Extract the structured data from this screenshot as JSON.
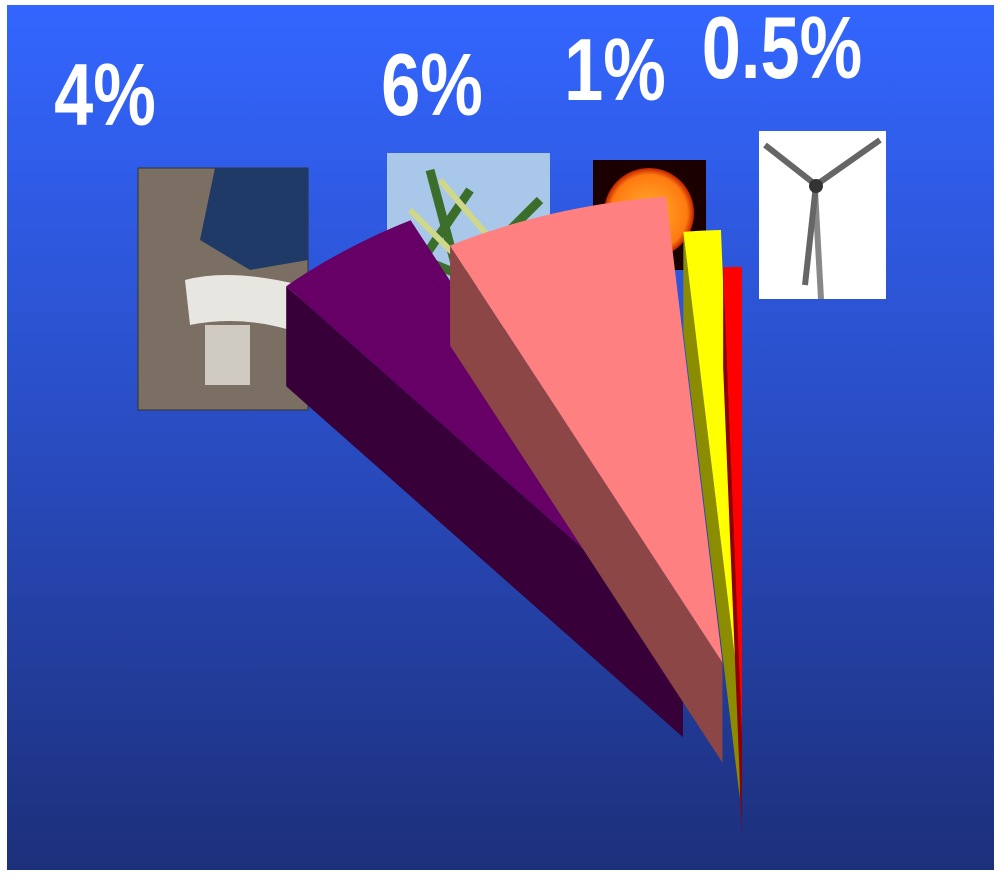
{
  "chart_data": {
    "type": "pie",
    "values": [
      4,
      6,
      1,
      0.5
    ],
    "value_labels": [
      "4%",
      "6%",
      "1%",
      "0.5%"
    ],
    "colors": [
      "#660066",
      "#ff8080",
      "#ffff00",
      "#ff0000"
    ]
  }
}
